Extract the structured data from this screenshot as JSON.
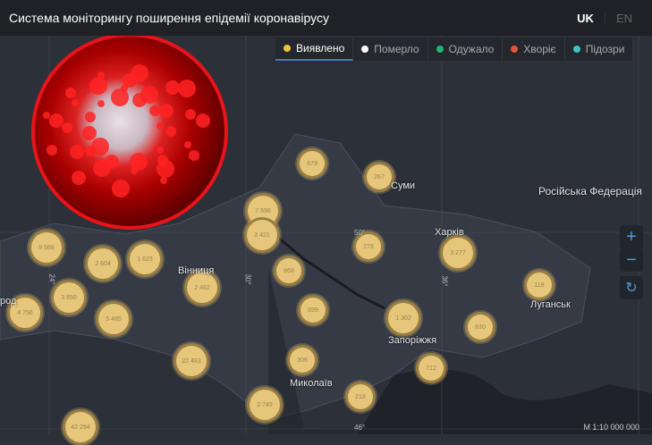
{
  "header": {
    "title": "Система моніторингу поширення епідемії коронавірусу",
    "lang_active": "UK",
    "lang_other": "EN"
  },
  "tabs": [
    {
      "label": "Виявлено",
      "color": "#f2c23e",
      "active": true
    },
    {
      "label": "Померло",
      "color": "#ffffff"
    },
    {
      "label": "Одужало",
      "color": "#1fb573"
    },
    {
      "label": "Хворіє",
      "color": "#e4533a"
    },
    {
      "label": "Підозри",
      "color": "#39c6c0"
    }
  ],
  "cities": [
    "Суми",
    "Російська Федерація",
    "Харків",
    "Вінниця",
    "Луганськ",
    "Запоріжжя",
    "Миколаїв",
    "род"
  ],
  "degrees": [
    "50°",
    "36°",
    "30°",
    "24°",
    "46°"
  ],
  "clusters": [
    "679",
    "267",
    "7 596",
    "3 421",
    "8 588",
    "2 604",
    "1 623",
    "2 462",
    "868",
    "278",
    "3 277",
    "118",
    "3 850",
    "5 485",
    "4 756",
    "699",
    "1 302",
    "830",
    "22 483",
    "306",
    "712",
    "2 749",
    "218",
    "42 294"
  ],
  "controls": {
    "zoom_in": "+",
    "zoom_out": "−",
    "reset": "↻"
  },
  "scale": "M 1:10 000 000"
}
